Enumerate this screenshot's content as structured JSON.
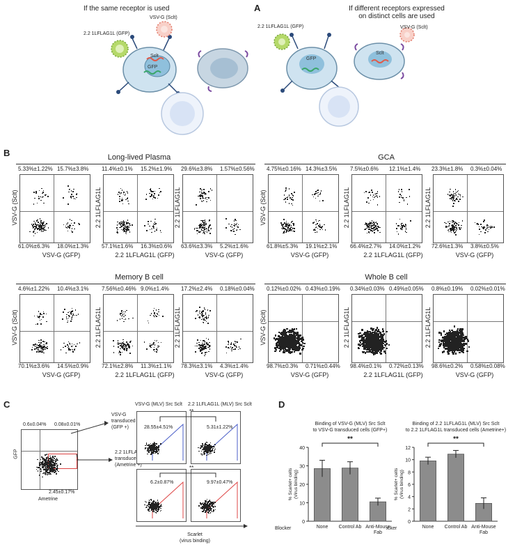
{
  "panel_a": {
    "letter": "A",
    "left_title": "If the same receptor is used",
    "right_title_line1": "If different receptors expressed",
    "right_title_line2": "on distinct cells are used",
    "left_virus1": "2.2 1LFLAG1L (GFP)",
    "left_virus2": "VSV-G (Sclt)",
    "right_virus1": "2.2 1LFLAG1L (GFP)",
    "right_virus2": "VSV-G (Sclt)",
    "cell_sclt": "Sclt",
    "cell_gfp": "GFP"
  },
  "panel_b": {
    "letter": "B",
    "groups": [
      {
        "title": "Long-lived Plasma",
        "plots": [
          {
            "ylabel": "VSV-G (Sclt)",
            "xlabel": "VSV-G (GFP)",
            "ul": "5.33%±1.22%",
            "ur": "15.7%±3.8%",
            "ll": "61.0%±6.3%",
            "lr": "18.0%±1.3%"
          },
          {
            "ylabel": "2.2 1LFLAG1L",
            "xlabel": "2.2 1LFLAG1L (GFP)",
            "ul": "11.4%±0.1%",
            "ur": "15.2%±1.9%",
            "ll": "57.1%±1.6%",
            "lr": "16.3%±0.6%"
          },
          {
            "ylabel": "2.2 1LFLAG1L",
            "xlabel": "VSV-G (GFP)",
            "ul": "29.6%±3.8%",
            "ur": "1.57%±0.56%",
            "ll": "63.6%±3.3%",
            "lr": "5.2%±1.6%"
          }
        ]
      },
      {
        "title": "GCA",
        "plots": [
          {
            "ylabel": "VSV-G (Sclt)",
            "xlabel": "VSV-G (GFP)",
            "ul": "4.75%±0.16%",
            "ur": "14.3%±3.5%",
            "ll": "61.8%±5.3%",
            "lr": "19.1%±2.1%"
          },
          {
            "ylabel": "2.2 1LFLAG1L",
            "xlabel": "2.2 1LFLAG1L (GFP)",
            "ul": "7.5%±0.6%",
            "ur": "12.1%±1.4%",
            "ll": "66.4%±2.7%",
            "lr": "14.0%±1.2%"
          },
          {
            "ylabel": "2.2 1LFLAG1L",
            "xlabel": "VSV-G (GFP)",
            "ul": "23.3%±1.8%",
            "ur": "0.3%±0.04%",
            "ll": "72.6%±1.3%",
            "lr": "3.8%±0.5%"
          }
        ]
      },
      {
        "title": "Memory B cell",
        "plots": [
          {
            "ylabel": "VSV-G (Sclt)",
            "xlabel": "VSV-G (GFP)",
            "ul": "4.6%±1.22%",
            "ur": "10.4%±3.1%",
            "ll": "70.1%±3.6%",
            "lr": "14.5%±0.9%"
          },
          {
            "ylabel": "2.2 1LFLAG1L",
            "xlabel": "2.2 1LFLAG1L (GFP)",
            "ul": "7.56%±0.46%",
            "ur": "9.0%±1.4%",
            "ll": "72.1%±2.8%",
            "lr": "11.3%±1.1%"
          },
          {
            "ylabel": "2.2 1LFLAG1L",
            "xlabel": "VSV-G (GFP)",
            "ul": "17.2%±2.4%",
            "ur": "0.18%±0.04%",
            "ll": "78.3%±3.1%",
            "lr": "4.3%±1.4%"
          }
        ]
      },
      {
        "title": "Whole B cell",
        "plots": [
          {
            "ylabel": "VSV-G (Sclt)",
            "xlabel": "VSV-G (GFP)",
            "ul": "0.12%±0.02%",
            "ur": "0.43%±0.19%",
            "ll": "98.7%±0.3%",
            "lr": "0.71%±0.44%"
          },
          {
            "ylabel": "2.2 1LFLAG1L",
            "xlabel": "2.2 1LFLAG1L (GFP)",
            "ul": "0.34%±0.03%",
            "ur": "0.49%±0.05%",
            "ll": "98.4%±0.1%",
            "lr": "0.72%±0.13%"
          },
          {
            "ylabel": "2.2 1LFLAG1L",
            "xlabel": "VSV-G (GFP)",
            "ul": "0.8%±0.19%",
            "ur": "0.02%±0.01%",
            "ll": "98.6%±0.2%",
            "lr": "0.58%±0.08%"
          }
        ]
      }
    ]
  },
  "panel_c": {
    "letter": "C",
    "pct_ul": "0.6±0.04%",
    "pct_ur": "0.08±0.01%",
    "pct_lr": "2.45±0.17%",
    "ylabel": "GFP",
    "xlabel": "Ametrine",
    "arrow1_line1": "VSV-G",
    "arrow1_line2": "transduced cells",
    "arrow1_line3": "(GFP +)",
    "arrow2_line1": "2.2 1LFLAG1L",
    "arrow2_line2": "transduced cells",
    "arrow2_line3": "(Ametrine +)",
    "col1_title": "VSV-G (MLV) Src Sclt",
    "col2_title": "2.2 1LFLAG1L (MLV) Src Sclt",
    "val_tl": "28.55±4.51%",
    "val_tr": "5.31±1.22%",
    "val_bl": "6.2±0.87%",
    "val_br": "9.97±0.47%",
    "sig": "**",
    "scarlet_line1": "Scarlet",
    "scarlet_line2": "(virus binding)"
  },
  "panel_d": {
    "letter": "D",
    "sig": "**",
    "blocker_label": "Blocker"
  },
  "chart_data": [
    {
      "type": "bar",
      "title": "Binding of VSV-G (MLV) Src Sclt to VSV-G transduced cells (GFP+)",
      "title_line1": "Binding of VSV-G (MLV) Src Sclt",
      "title_line2": "to VSV-G transduced cells (GFP+)",
      "ylabel_line1": "% Scarlet+ cells",
      "ylabel_line2": "(Virus binding)",
      "categories": [
        "None",
        "Control Ab",
        "Anti-Mouse Fab"
      ],
      "cat_line1": [
        "None",
        "Control Ab",
        "Anti-Mouse"
      ],
      "cat_line2": [
        "",
        "",
        "Fab"
      ],
      "values": [
        28.5,
        28.8,
        10.5
      ],
      "errors": [
        4.5,
        3.4,
        2.0
      ],
      "ylim": [
        0,
        40
      ],
      "yticks": [
        0,
        10,
        20,
        30,
        40
      ],
      "bar_color": "#8c8c8c"
    },
    {
      "type": "bar",
      "title": "Binding of 2.2 1LFLAG1L (MLV) Src Sclt to 2.2 1LFLAG1L transduced cells (Ametrine+)",
      "title_line1": "Binding of 2.2 1LFLAG1L (MLV) Src Sclt",
      "title_line2": "to 2.2 1LFLAG1L transduced cells (Ametrine+)",
      "ylabel_line1": "% Scarlet+ cells",
      "ylabel_line2": "(Virus binding)",
      "categories": [
        "None",
        "Control Ab",
        "Anti-Mouse Fab"
      ],
      "cat_line1": [
        "None",
        "Control Ab",
        "Anti-Mouse"
      ],
      "cat_line2": [
        "",
        "",
        "Fab"
      ],
      "values": [
        9.8,
        10.9,
        2.9
      ],
      "errors": [
        0.6,
        0.6,
        0.9
      ],
      "ylim": [
        0,
        12
      ],
      "yticks": [
        0,
        2,
        4,
        6,
        8,
        10,
        12
      ],
      "bar_color": "#8c8c8c"
    }
  ]
}
